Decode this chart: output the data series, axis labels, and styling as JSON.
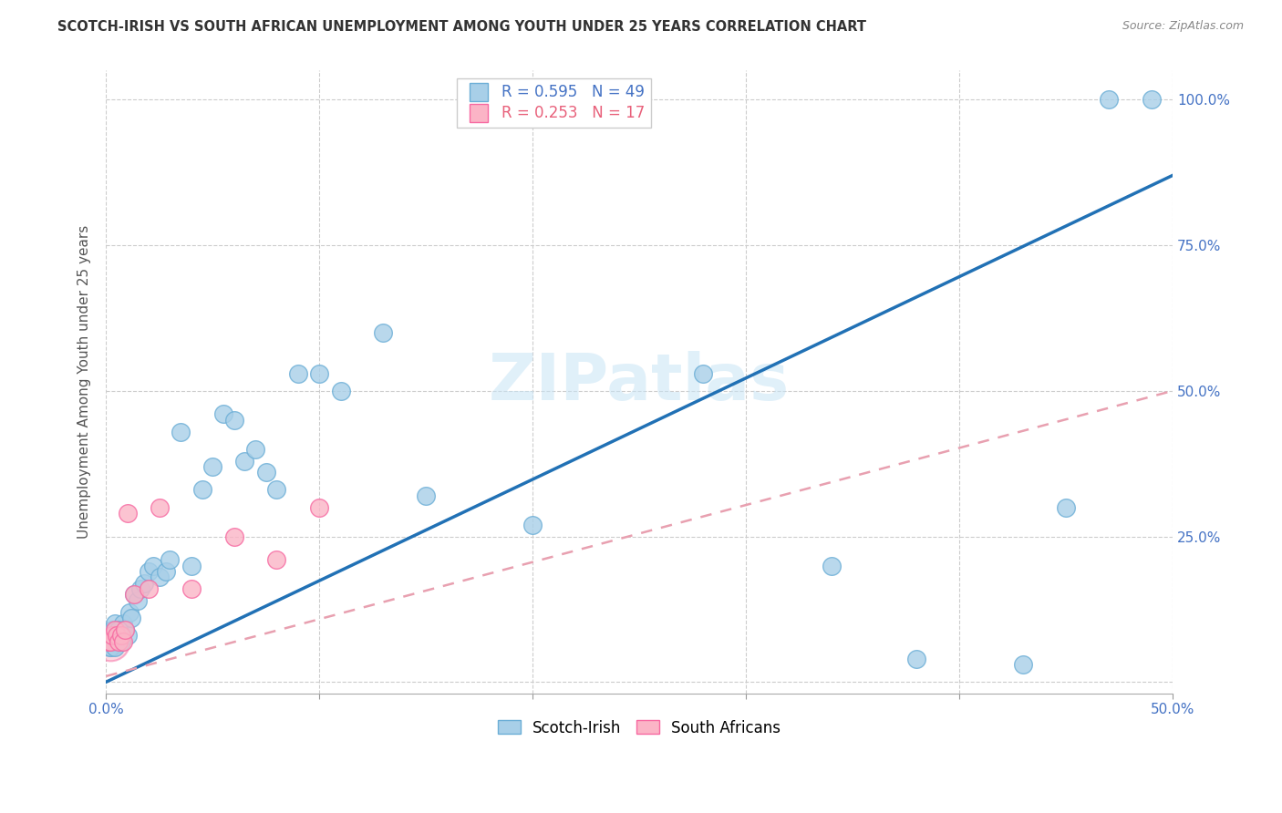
{
  "title": "SCOTCH-IRISH VS SOUTH AFRICAN UNEMPLOYMENT AMONG YOUTH UNDER 25 YEARS CORRELATION CHART",
  "source": "Source: ZipAtlas.com",
  "ylabel": "Unemployment Among Youth under 25 years",
  "watermark": "ZIPatlas",
  "blue_color": "#a8cfe8",
  "blue_edge_color": "#6baed6",
  "pink_color": "#fbb4c6",
  "pink_edge_color": "#f768a1",
  "blue_line_color": "#2171b5",
  "pink_line_color": "#e8a0b0",
  "blue_R": 0.595,
  "pink_R": 0.253,
  "blue_N": 49,
  "pink_N": 17,
  "xmin": 0.0,
  "xmax": 0.5,
  "ymin": -0.02,
  "ymax": 1.05,
  "blue_line_x0": 0.0,
  "blue_line_y0": 0.0,
  "blue_line_x1": 0.5,
  "blue_line_y1": 0.87,
  "pink_line_x0": 0.0,
  "pink_line_y0": 0.01,
  "pink_line_x1": 0.5,
  "pink_line_y1": 0.5,
  "si_x": [
    0.001,
    0.002,
    0.003,
    0.004,
    0.005,
    0.006,
    0.007,
    0.008,
    0.009,
    0.01,
    0.011,
    0.012,
    0.013,
    0.015,
    0.016,
    0.018,
    0.02,
    0.022,
    0.025,
    0.028,
    0.03,
    0.035,
    0.04,
    0.045,
    0.05,
    0.055,
    0.06,
    0.065,
    0.07,
    0.075,
    0.08,
    0.09,
    0.1,
    0.11,
    0.13,
    0.15,
    0.2,
    0.28,
    0.34,
    0.38,
    0.43,
    0.45,
    0.47,
    0.49,
    0.003,
    0.004,
    0.005,
    0.006,
    0.007
  ],
  "si_y": [
    0.07,
    0.06,
    0.09,
    0.1,
    0.07,
    0.08,
    0.08,
    0.1,
    0.09,
    0.08,
    0.12,
    0.11,
    0.15,
    0.14,
    0.16,
    0.17,
    0.19,
    0.2,
    0.18,
    0.19,
    0.21,
    0.43,
    0.2,
    0.33,
    0.37,
    0.46,
    0.45,
    0.38,
    0.4,
    0.36,
    0.33,
    0.53,
    0.53,
    0.5,
    0.6,
    0.32,
    0.27,
    0.53,
    0.2,
    0.04,
    0.03,
    0.3,
    1.0,
    1.0,
    0.07,
    0.06,
    0.08,
    0.09,
    0.07
  ],
  "sa_x": [
    0.001,
    0.002,
    0.003,
    0.004,
    0.005,
    0.006,
    0.007,
    0.008,
    0.009,
    0.01,
    0.013,
    0.02,
    0.025,
    0.04,
    0.06,
    0.08,
    0.1
  ],
  "sa_y": [
    0.07,
    0.07,
    0.08,
    0.09,
    0.08,
    0.07,
    0.08,
    0.07,
    0.09,
    0.29,
    0.15,
    0.16,
    0.3,
    0.16,
    0.25,
    0.21,
    0.3
  ]
}
